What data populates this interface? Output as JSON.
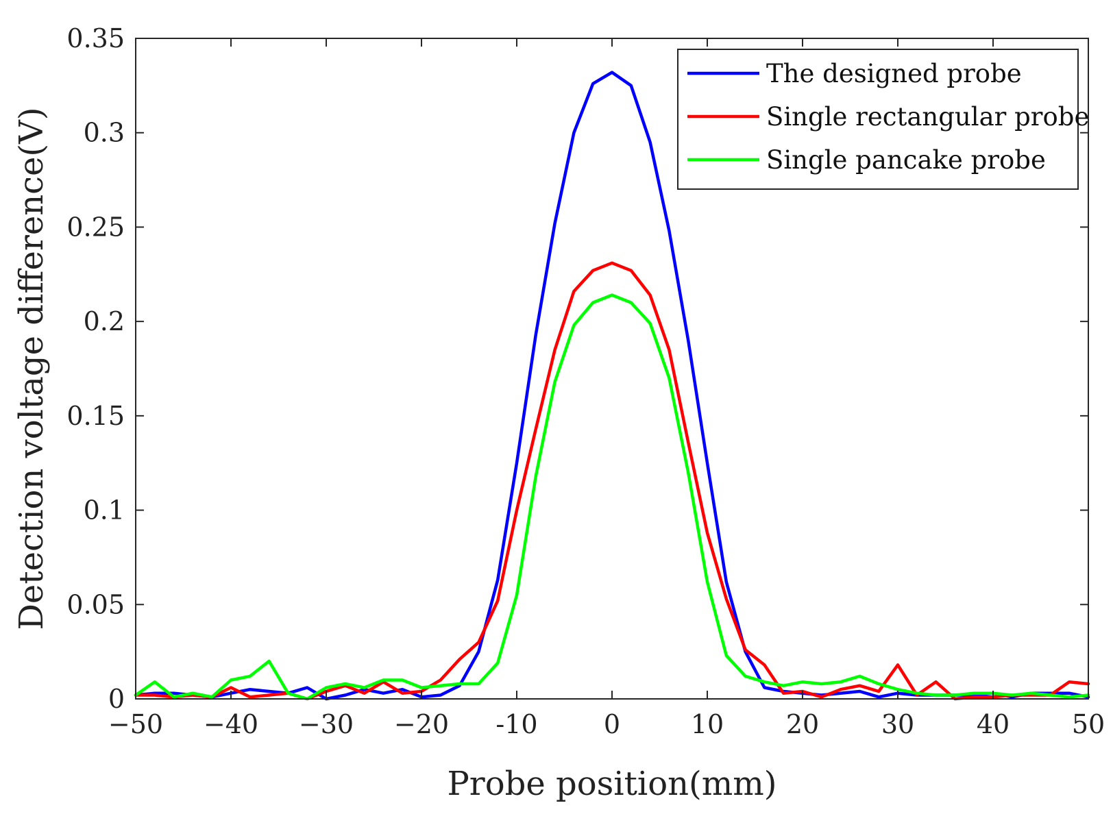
{
  "chart_data": {
    "type": "line",
    "title": "",
    "xlabel": "Probe position(mm)",
    "ylabel": "Detection voltage difference(V)",
    "xlim": [
      -50,
      50
    ],
    "ylim": [
      0,
      0.35
    ],
    "grid": false,
    "legend_position": "top-right",
    "x_ticks": [
      -50,
      -40,
      -30,
      -20,
      -10,
      0,
      10,
      20,
      30,
      40,
      50
    ],
    "x_tick_labels": [
      "−50",
      "−40",
      "−30",
      "−20",
      "-10",
      "0",
      "10",
      "20",
      "30",
      "40",
      "50"
    ],
    "y_ticks": [
      0,
      0.05,
      0.1,
      0.15,
      0.2,
      0.25,
      0.3,
      0.35
    ],
    "y_tick_labels": [
      "0",
      "0.05",
      "0.1",
      "0.15",
      "0.2",
      "0.25",
      "0.3",
      "0.35"
    ],
    "x": [
      -50,
      -48,
      -46,
      -44,
      -42,
      -40,
      -38,
      -36,
      -34,
      -32,
      -30,
      -28,
      -26,
      -24,
      -22,
      -20,
      -18,
      -16,
      -14,
      -12,
      -10,
      -8,
      -6,
      -4,
      -2,
      0,
      2,
      4,
      6,
      8,
      10,
      12,
      14,
      16,
      18,
      20,
      22,
      24,
      26,
      28,
      30,
      32,
      34,
      36,
      38,
      40,
      42,
      44,
      46,
      48,
      50
    ],
    "series": [
      {
        "name": "The designed probe",
        "color": "#0000ff",
        "values": [
          0.002,
          0.003,
          0.003,
          0.002,
          0.001,
          0.003,
          0.005,
          0.004,
          0.003,
          0.006,
          0.0,
          0.002,
          0.005,
          0.003,
          0.005,
          0.001,
          0.002,
          0.007,
          0.025,
          0.063,
          0.125,
          0.193,
          0.252,
          0.3,
          0.326,
          0.332,
          0.325,
          0.295,
          0.248,
          0.19,
          0.125,
          0.062,
          0.025,
          0.006,
          0.004,
          0.003,
          0.002,
          0.003,
          0.004,
          0.001,
          0.003,
          0.002,
          0.002,
          0.002,
          0.002,
          0.003,
          0.001,
          0.003,
          0.003,
          0.003,
          0.001
        ]
      },
      {
        "name": "Single rectangular probe",
        "color": "#ff0000",
        "values": [
          0.002,
          0.002,
          0.001,
          0.002,
          0.001,
          0.006,
          0.001,
          0.002,
          0.003,
          0.0,
          0.004,
          0.007,
          0.003,
          0.009,
          0.003,
          0.004,
          0.01,
          0.021,
          0.03,
          0.052,
          0.1,
          0.143,
          0.185,
          0.216,
          0.227,
          0.231,
          0.227,
          0.214,
          0.185,
          0.136,
          0.088,
          0.053,
          0.026,
          0.018,
          0.003,
          0.004,
          0.001,
          0.005,
          0.007,
          0.004,
          0.018,
          0.002,
          0.009,
          0.0,
          0.001,
          0.001,
          0.002,
          0.002,
          0.002,
          0.009,
          0.008
        ]
      },
      {
        "name": "Single pancake probe",
        "color": "#00ff00",
        "values": [
          0.002,
          0.009,
          0.001,
          0.003,
          0.001,
          0.01,
          0.012,
          0.02,
          0.003,
          0.0,
          0.006,
          0.008,
          0.006,
          0.01,
          0.01,
          0.006,
          0.007,
          0.008,
          0.008,
          0.019,
          0.055,
          0.118,
          0.168,
          0.198,
          0.21,
          0.214,
          0.21,
          0.199,
          0.17,
          0.12,
          0.062,
          0.023,
          0.012,
          0.009,
          0.007,
          0.009,
          0.008,
          0.009,
          0.012,
          0.008,
          0.005,
          0.003,
          0.002,
          0.002,
          0.003,
          0.003,
          0.002,
          0.003,
          0.002,
          0.001,
          0.002
        ]
      }
    ]
  }
}
